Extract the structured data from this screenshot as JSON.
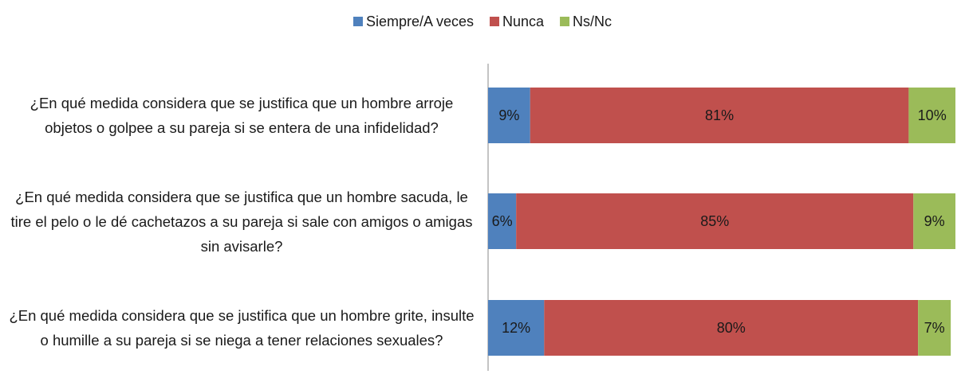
{
  "chart_data": {
    "type": "stacked_barh",
    "categories": [
      "¿En qué medida considera que se justifica que un hombre arroje objetos o golpee a su pareja si se entera de una infidelidad?",
      "¿En qué medida considera que se justifica que un hombre sacuda, le tire el pelo o le dé cachetazos a su pareja si sale con amigos o amigas sin avisarle?",
      "¿En qué medida considera que se justifica que un hombre grite, insulte o humille a su pareja si se niega a tener relaciones sexuales?"
    ],
    "series": [
      {
        "name": "Siempre/A veces",
        "color": "#4f81bd",
        "values": [
          9,
          6,
          12
        ],
        "value_labels": [
          "9%",
          "6%",
          "12%"
        ]
      },
      {
        "name": "Nunca",
        "color": "#c0504d",
        "values": [
          81,
          85,
          80
        ],
        "value_labels": [
          "81%",
          "85%",
          "80%"
        ]
      },
      {
        "name": "Ns/Nc",
        "color": "#9bbb59",
        "values": [
          10,
          9,
          7
        ],
        "value_labels": [
          "10%",
          "9%",
          "7%"
        ]
      }
    ],
    "xlim": [
      0,
      100
    ],
    "legend": "top"
  }
}
